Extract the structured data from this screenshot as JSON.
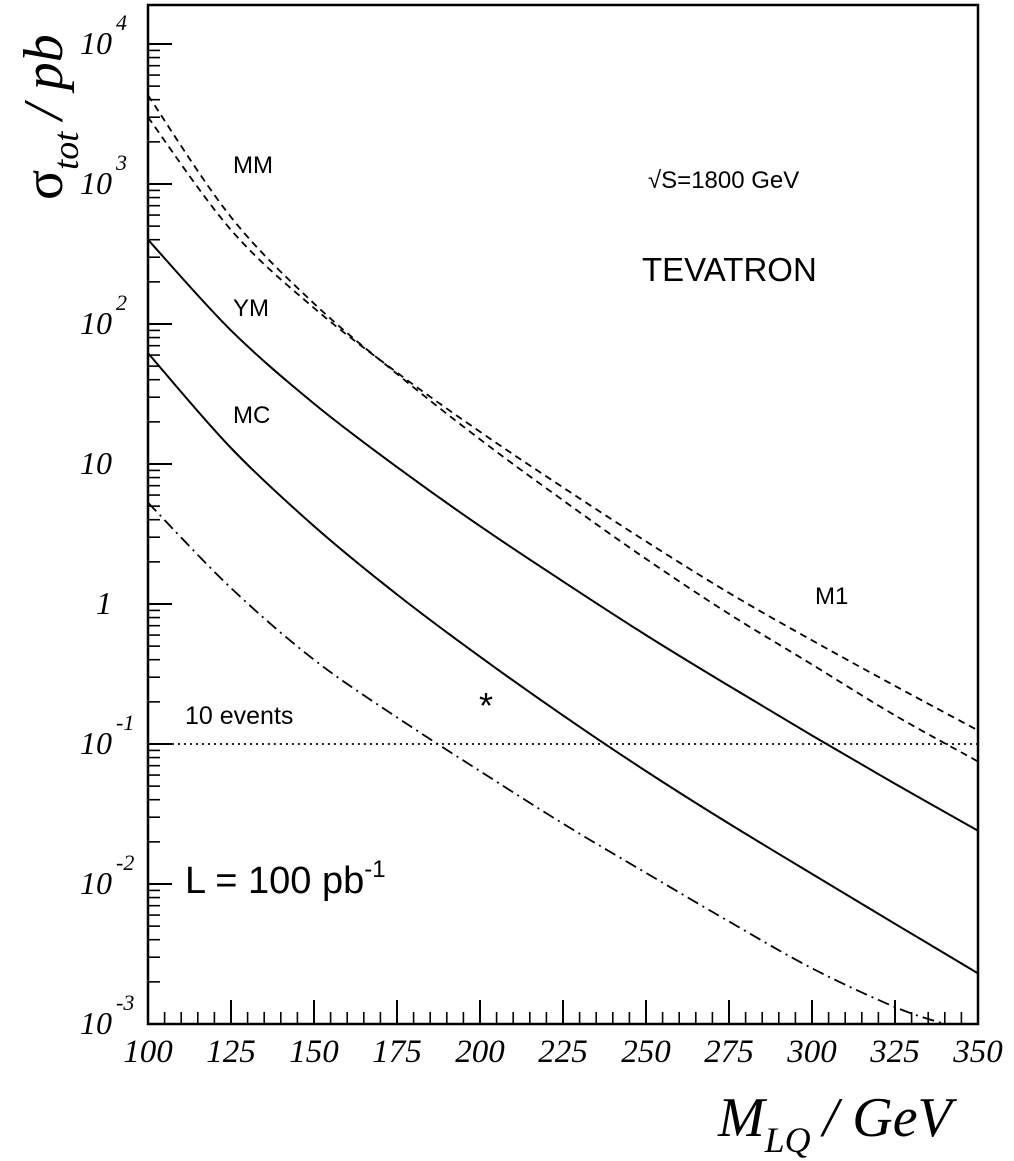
{
  "chart_data": {
    "type": "line",
    "title": "",
    "y_scale": "log",
    "xlim": [
      100,
      350
    ],
    "ylim": [
      0.001,
      20000
    ],
    "grid": false,
    "x_ticks": [
      "100",
      "125",
      "150",
      "175",
      "200",
      "225",
      "250",
      "275",
      "300",
      "325",
      "350"
    ],
    "y_ticks": [
      {
        "value": 10000,
        "base": "10",
        "exp": "4"
      },
      {
        "value": 1000,
        "base": "10",
        "exp": "3"
      },
      {
        "value": 100,
        "base": "10",
        "exp": "2"
      },
      {
        "value": 10,
        "base": "10",
        "exp": ""
      },
      {
        "value": 1,
        "base": "1",
        "exp": ""
      },
      {
        "value": 0.1,
        "base": "10",
        "exp": "-1"
      },
      {
        "value": 0.01,
        "base": "10",
        "exp": "-2"
      },
      {
        "value": 0.001,
        "base": "10",
        "exp": "-3"
      }
    ],
    "xlabel": {
      "main": "M",
      "sub": "LQ",
      "rest": "/ GeV"
    },
    "ylabel": {
      "main": "σ",
      "sub": "tot",
      "rest": "/ pb"
    },
    "series": [
      {
        "name": "MM",
        "style": "dashed",
        "x": [
          100,
          125,
          150,
          175,
          200,
          225,
          250,
          275,
          300,
          325,
          350
        ],
        "y": [
          4300,
          580,
          140,
          44,
          15,
          5.5,
          2.1,
          0.85,
          0.37,
          0.16,
          0.075
        ]
      },
      {
        "name": "M1",
        "style": "dashed",
        "x": [
          100,
          125,
          150,
          175,
          200,
          225,
          250,
          275,
          300,
          325,
          350
        ],
        "y": [
          3000,
          470,
          130,
          45,
          17,
          6.8,
          2.8,
          1.2,
          0.55,
          0.26,
          0.125
        ]
      },
      {
        "name": "YM",
        "style": "solid",
        "x": [
          100,
          125,
          150,
          175,
          200,
          225,
          250,
          275,
          300,
          325,
          350
        ],
        "y": [
          400,
          90,
          27,
          9.5,
          3.6,
          1.45,
          0.6,
          0.26,
          0.115,
          0.052,
          0.024
        ]
      },
      {
        "name": "MC",
        "style": "solid",
        "x": [
          100,
          125,
          150,
          175,
          200,
          225,
          250,
          275,
          300,
          325,
          350
        ],
        "y": [
          62,
          13,
          3.6,
          1.17,
          0.42,
          0.16,
          0.064,
          0.027,
          0.0118,
          0.0052,
          0.0023
        ]
      },
      {
        "name": "",
        "style": "dashdot",
        "x": [
          100,
          125,
          150,
          175,
          200,
          225,
          250,
          275,
          300,
          325,
          340
        ],
        "y": [
          5.3,
          1.3,
          0.4,
          0.155,
          0.064,
          0.027,
          0.012,
          0.0054,
          0.0025,
          0.00132,
          0.001
        ]
      },
      {
        "name": "",
        "style": "dotted",
        "x": [
          100,
          350
        ],
        "y": [
          0.1,
          0.1
        ]
      }
    ],
    "annotations": {
      "mm": "MM",
      "ym": "YM",
      "mc": "MC",
      "m1": "M1",
      "energy": "√S=1800 GeV",
      "collider": "TEVATRON",
      "events": "10 events",
      "star": "*",
      "lumi_main": "L = 100 pb",
      "lumi_exp": "-1"
    }
  }
}
